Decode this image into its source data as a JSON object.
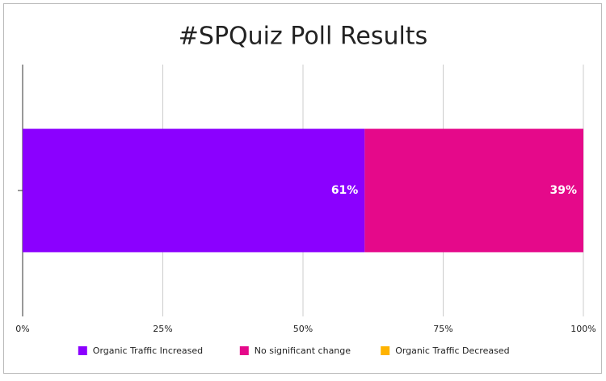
{
  "chart_data": {
    "type": "bar",
    "orientation": "horizontal",
    "stacked": true,
    "title": "#SPQuiz Poll Results",
    "categories": [
      null
    ],
    "series": [
      {
        "name": "Organic Traffic Increased",
        "color": "#8b00ff",
        "values": [
          61
        ],
        "value_labels": [
          "61%"
        ]
      },
      {
        "name": "No significant change",
        "color": "#e5098a",
        "values": [
          39
        ],
        "value_labels": [
          "39%"
        ]
      },
      {
        "name": "Organic Traffic Decreased",
        "color": "#ffb300",
        "values": [
          0
        ]
      }
    ],
    "xlim": [
      0,
      100
    ],
    "xticks": [
      {
        "value": 0,
        "label": "0%"
      },
      {
        "value": 25,
        "label": "25%"
      },
      {
        "value": 50,
        "label": "50%"
      },
      {
        "value": 75,
        "label": "75%"
      },
      {
        "value": 100,
        "label": "100%"
      }
    ],
    "grid": true,
    "legend": "bottom"
  }
}
